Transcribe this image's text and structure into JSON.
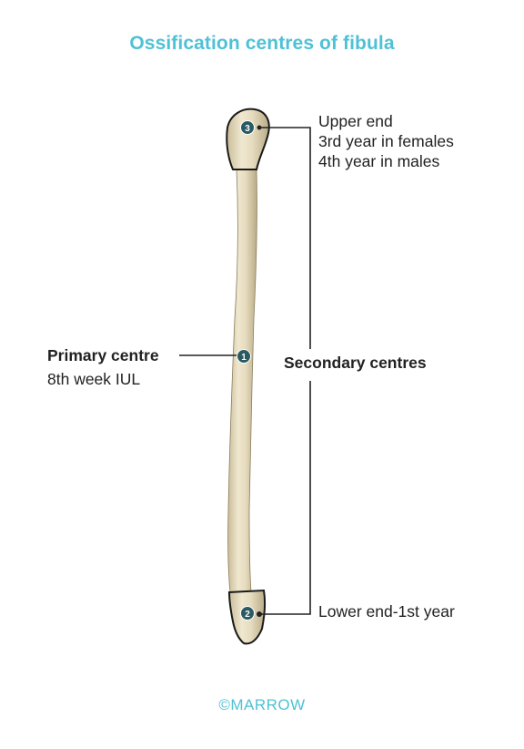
{
  "title": "Ossification centres of fibula",
  "labels": {
    "upper_end": [
      "Upper end",
      "3rd year in females",
      "4th year in males"
    ],
    "primary_title": "Primary centre",
    "primary_sub": "8th week IUL",
    "secondary": "Secondary centres",
    "lower_end": "Lower end-1st year"
  },
  "markers": {
    "primary": "1",
    "lower": "2",
    "upper": "3"
  },
  "copyright": "©MARROW",
  "colors": {
    "accent": "#4fc1d6",
    "marker_fill": "#2b5a63",
    "bone": "#e6dcbf",
    "outline": "#1a1a1a"
  }
}
